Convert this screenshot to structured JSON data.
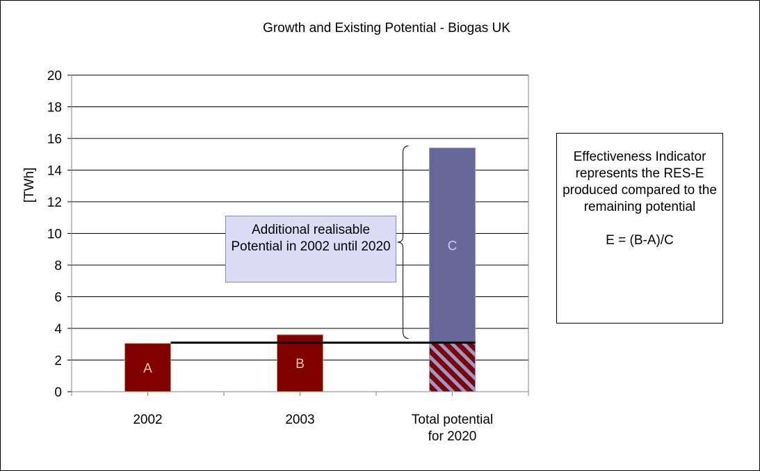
{
  "chart_data": {
    "type": "bar",
    "title": "Growth and Existing Potential - Biogas UK",
    "ylabel": "[TWh]",
    "xlabel": "",
    "ylim": [
      0,
      20
    ],
    "yticks": [
      0,
      2,
      4,
      6,
      8,
      10,
      12,
      14,
      16,
      18,
      20
    ],
    "grid": true,
    "categories": [
      "2002",
      "2003",
      "Total potential\nfor 2020"
    ],
    "category_lines": [
      [
        "2002"
      ],
      [
        "2003"
      ],
      [
        "Total potential",
        "for 2020"
      ]
    ],
    "bars": [
      {
        "category": "2002",
        "value": 3.05,
        "label": "A",
        "color": "#800000"
      },
      {
        "category": "2003",
        "value": 3.6,
        "label": "B",
        "color": "#800000"
      },
      {
        "category": "Total potential\nfor 2020",
        "base": 3.1,
        "value": 15.4,
        "label": "C",
        "color": "#666699",
        "hatched_base": 3.1
      }
    ],
    "reference_line": {
      "value": 3.1,
      "from_category": "2002",
      "to_category": "Total potential\nfor 2020"
    },
    "annotations": {
      "note": "Additional realisable Potential in 2002 until 2020",
      "brace_range": [
        3.1,
        15.4
      ]
    },
    "colors": {
      "bar_actual": "#800000",
      "bar_potential": "#666699",
      "hatch": "#9999cc",
      "label_light": "#ffcc99",
      "label_potential": "#ccccff"
    }
  },
  "info": {
    "line1": "Effectiveness Indicator represents the RES-E produced compared to the remaining potential",
    "line2": "E = (B-A)/C"
  }
}
